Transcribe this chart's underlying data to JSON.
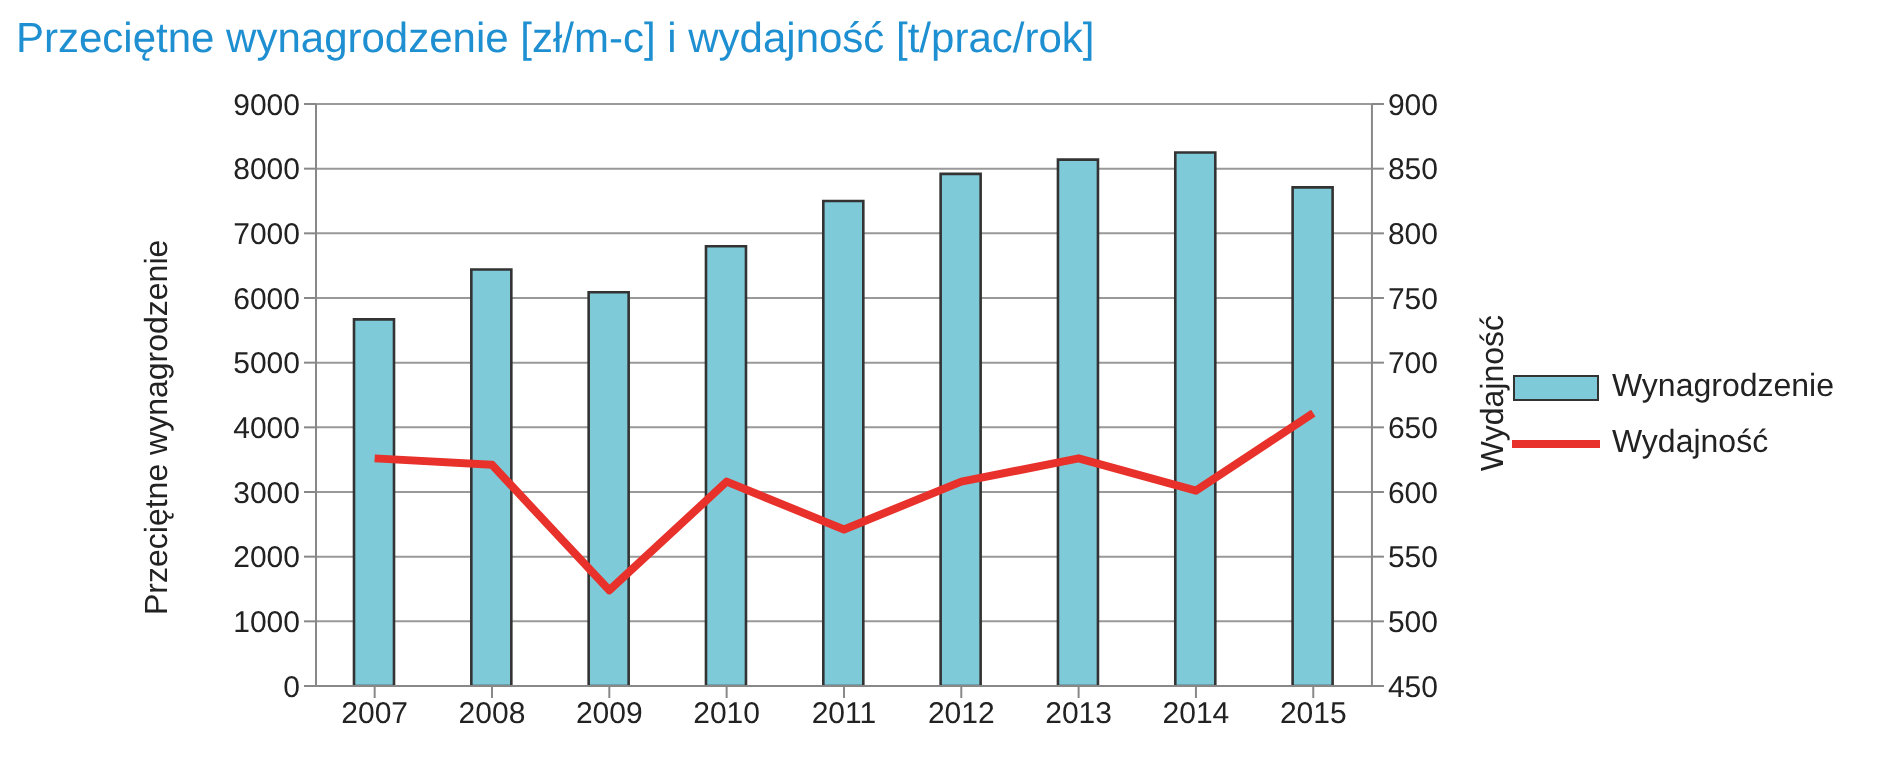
{
  "chart_data": {
    "type": "bar",
    "title": "Przeciętne wynagrodzenie [zł/m-c] i wydajność [t/prac/rok]",
    "ylabel": "Przeciętne wynagrodzenie",
    "y2label": "Wydajność",
    "categories": [
      "2007",
      "2008",
      "2009",
      "2010",
      "2011",
      "2012",
      "2013",
      "2014",
      "2015"
    ],
    "series": [
      {
        "name": "Wynagrodzenie",
        "color": "#7fcad8",
        "values": [
          5670,
          6440,
          6090,
          6800,
          7500,
          7920,
          8140,
          8250,
          7710
        ]
      },
      {
        "name": "Wydajność",
        "type": "line",
        "axis": "y2",
        "color": "#e8312a",
        "values": [
          626,
          621,
          524,
          608,
          571,
          608,
          626,
          601,
          661
        ]
      }
    ],
    "ylim": [
      0,
      9000
    ],
    "yticks": [
      0,
      1000,
      2000,
      3000,
      4000,
      5000,
      6000,
      7000,
      8000,
      9000
    ],
    "y2lim": [
      450,
      900
    ],
    "y2ticks": [
      450,
      500,
      550,
      600,
      650,
      700,
      750,
      800,
      850,
      900
    ],
    "grid": "y",
    "legend": "right",
    "marker": "none"
  }
}
